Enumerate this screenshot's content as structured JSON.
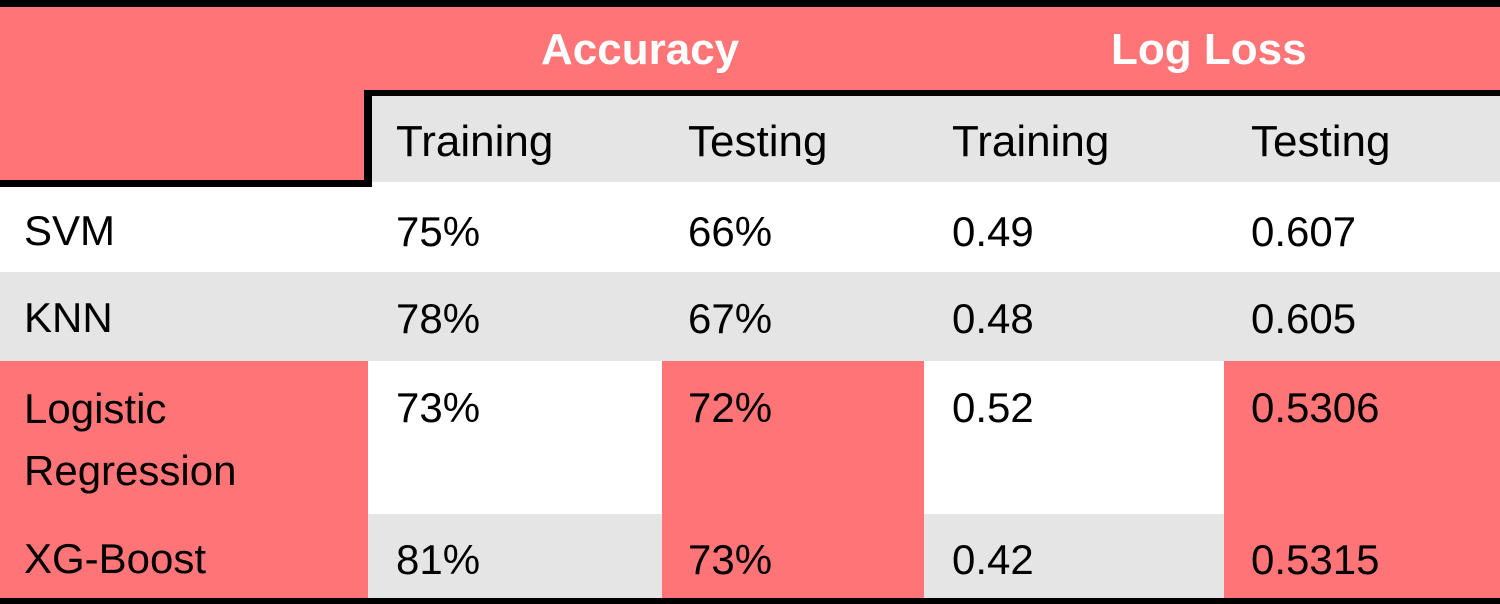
{
  "header": {
    "groups": [
      {
        "label": "Accuracy"
      },
      {
        "label": "Log Loss"
      }
    ],
    "sub_columns": [
      "Training",
      "Testing",
      "Training",
      "Testing"
    ]
  },
  "rows": [
    {
      "model": "SVM",
      "acc_train": "75%",
      "acc_test": "66%",
      "ll_train": "0.49",
      "ll_test": "0.607"
    },
    {
      "model": "KNN",
      "acc_train": "78%",
      "acc_test": "67%",
      "ll_train": "0.48",
      "ll_test": "0.605"
    },
    {
      "model": "Logistic\nRegression",
      "acc_train": "73%",
      "acc_test": "72%",
      "ll_train": "0.52",
      "ll_test": "0.5306"
    },
    {
      "model": "XG-Boost",
      "acc_train": "81%",
      "acc_test": "73%",
      "ll_train": "0.42",
      "ll_test": "0.5315"
    }
  ],
  "colors": {
    "highlight": "#ff7577",
    "stripe": "#e5e5e5",
    "white": "#ffffff",
    "border": "#000000"
  }
}
